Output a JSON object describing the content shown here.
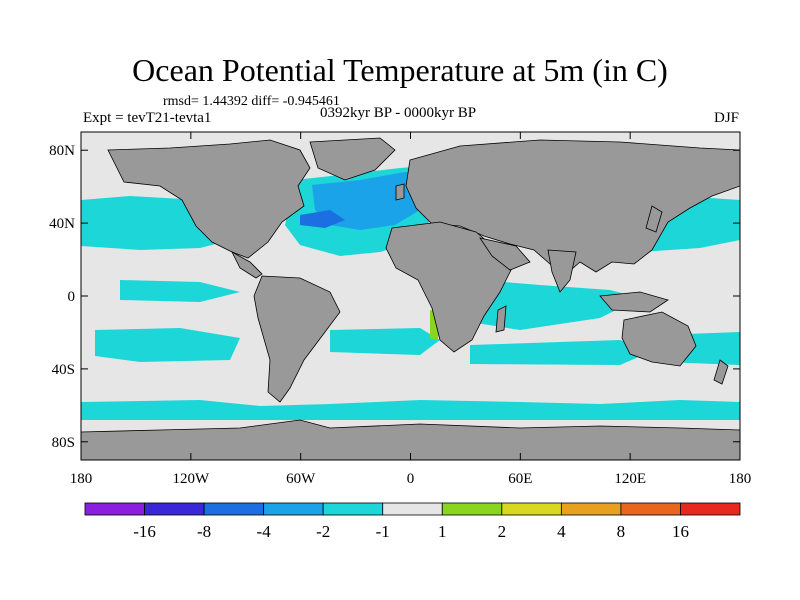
{
  "chart_data": {
    "type": "heatmap",
    "title": "Ocean Potential Temperature at 5m (in C)",
    "stats": "rmsd= 1.44392 diff= -0.945461",
    "experiment": "Expt = tevT21-tevta1",
    "period": "0392kyr BP - 0000kyr BP",
    "season": "DJF",
    "x_ticks": [
      "180",
      "120W",
      "60W",
      "0",
      "60E",
      "120E",
      "180"
    ],
    "y_ticks": [
      "80N",
      "40N",
      "0",
      "40S",
      "80S"
    ],
    "xlim": [
      -180,
      180
    ],
    "ylim": [
      -90,
      90
    ],
    "colorbar": {
      "labels": [
        "-16",
        "-8",
        "-4",
        "-2",
        "-1",
        "1",
        "2",
        "4",
        "8",
        "16"
      ],
      "colors": [
        "#8a1fe0",
        "#3a28d8",
        "#1b6fe0",
        "#1aa3e8",
        "#1dd6d8",
        "#e6e6e6",
        "#8ad51e",
        "#d8d81e",
        "#e8a11e",
        "#e8661e",
        "#e8281e"
      ]
    },
    "colors": {
      "land": "#999999",
      "ocean": "#e6e6e6",
      "frame": "#000000"
    }
  }
}
